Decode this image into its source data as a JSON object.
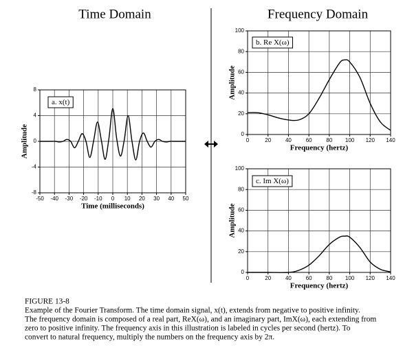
{
  "figure": {
    "left_heading": "Time Domain",
    "right_heading": "Frequency Domain",
    "caption_title": "FIGURE 13-8",
    "caption": [
      "Example of the Fourier Transform.  The time domain signal, x(t), extends from negative to positive infinity.",
      "The frequency domain is composed of a real part, ReX(ω), and an imaginary part, ImX(ω), each extending from",
      "zero to positive infinity.   The frequency axis in this illustration is labeled in cycles per second (hertz).  To",
      "convert to natural frequency, multiply the numbers on the frequency axis by 2π."
    ]
  },
  "chart_data": [
    {
      "type": "line",
      "label": "a.  x(t)",
      "xlabel": "Time (milliseconds)",
      "ylabel": "Amplitude",
      "xlim": [
        -50,
        50
      ],
      "xticks": [
        -50,
        -40,
        -30,
        -20,
        -10,
        0,
        10,
        20,
        30,
        40,
        50
      ],
      "ylim": [
        -8,
        8
      ],
      "yticks": [
        -8,
        -4,
        0,
        4,
        8
      ],
      "grid": true,
      "x": [
        -50,
        -42,
        -39.375,
        -36.75,
        -34.125,
        -31.5,
        -28.875,
        -26.25,
        -23.625,
        -21,
        -18.375,
        -15.75,
        -13.125,
        -10.5,
        -7.875,
        -5.25,
        -2.625,
        0,
        2.625,
        5.25,
        7.875,
        10.5,
        13.125,
        15.75,
        18.375,
        21,
        23.625,
        26.25,
        28.875,
        31.5,
        34.125,
        36.75,
        39.375,
        42,
        50
      ],
      "series": [
        {
          "color": "#000000",
          "values": [
            0,
            0,
            0,
            -0.1,
            0,
            0.3,
            0,
            -1.0,
            0,
            1.2,
            0,
            -2.5,
            0.1,
            3.0,
            0.2,
            -2.8,
            0.5,
            5.1,
            0.5,
            -2.3,
            0.2,
            4.0,
            0.1,
            -2.9,
            0,
            1.3,
            0,
            -0.9,
            0,
            0.3,
            0,
            -0.1,
            0,
            0,
            0
          ]
        }
      ]
    },
    {
      "type": "line",
      "label": "b.  Re X(ω)",
      "xlabel": "Frequency (hertz)",
      "ylabel": "Amplitude",
      "xlim": [
        0,
        140
      ],
      "xticks": [
        0,
        20,
        40,
        60,
        80,
        100,
        120,
        140
      ],
      "ylim": [
        0,
        100
      ],
      "yticks": [
        0,
        20,
        40,
        60,
        80,
        100
      ],
      "grid": true,
      "x": [
        0,
        10,
        20,
        30,
        40,
        50,
        60,
        70,
        80,
        90,
        95,
        100,
        110,
        120,
        130,
        140
      ],
      "series": [
        {
          "color": "#000000",
          "values": [
            21,
            21,
            19,
            16,
            14,
            14,
            20,
            35,
            53,
            69,
            72,
            70,
            55,
            30,
            12,
            4
          ]
        }
      ]
    },
    {
      "type": "line",
      "label": "c.  Im X(ω)",
      "xlabel": "Frequency (hertz)",
      "ylabel": "Amplitude",
      "xlim": [
        0,
        140
      ],
      "xticks": [
        0,
        20,
        40,
        60,
        80,
        100,
        120,
        140
      ],
      "ylim": [
        0,
        100
      ],
      "yticks": [
        0,
        20,
        40,
        60,
        80,
        100
      ],
      "grid": true,
      "x": [
        0,
        20,
        40,
        50,
        60,
        70,
        80,
        90,
        95,
        100,
        110,
        120,
        130,
        140
      ],
      "series": [
        {
          "color": "#000000",
          "values": [
            0,
            0,
            0,
            2,
            7,
            16,
            27,
            34,
            35,
            34,
            24,
            10,
            3,
            0.5
          ]
        }
      ]
    }
  ]
}
